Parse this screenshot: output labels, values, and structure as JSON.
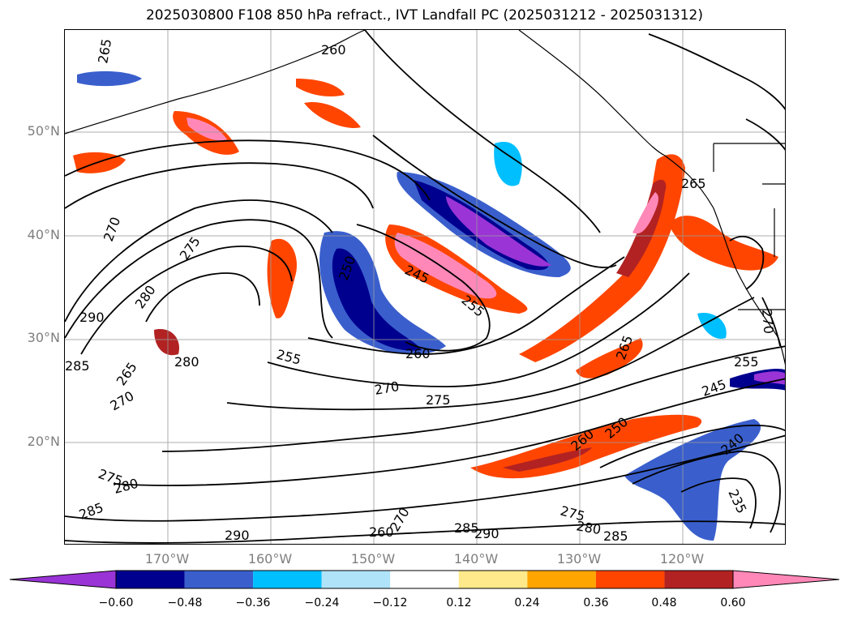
{
  "title": "2025030800 F108 850 hPa refract., IVT Landfall PC (2025031212 - 2025031312)",
  "lat_labels": [
    "50°N",
    "40°N",
    "30°N",
    "20°N"
  ],
  "lon_labels": [
    "170°W",
    "160°W",
    "150°W",
    "140°W",
    "130°W",
    "120°W"
  ],
  "contour_labels": [
    "265",
    "260",
    "265",
    "270",
    "275",
    "280",
    "290",
    "285",
    "280",
    "265",
    "270",
    "255",
    "250",
    "245",
    "255",
    "260",
    "270",
    "275",
    "260",
    "250",
    "265",
    "270",
    "240",
    "235",
    "245",
    "255",
    "275",
    "280",
    "285",
    "290",
    "285",
    "260",
    "270",
    "275",
    "280",
    "285",
    "290"
  ],
  "colorbar": {
    "ticks": [
      "−0.60",
      "−0.48",
      "−0.36",
      "−0.24",
      "−0.12",
      "0.12",
      "0.24",
      "0.36",
      "0.48",
      "0.60"
    ],
    "colors": [
      "#9a34d6",
      "#00008f",
      "#3a5fcd",
      "#00bfff",
      "#afe3fa",
      "#ffffff",
      "#ffe98a",
      "#ffa500",
      "#ff4500",
      "#b22222",
      "#ff88b8"
    ]
  }
}
